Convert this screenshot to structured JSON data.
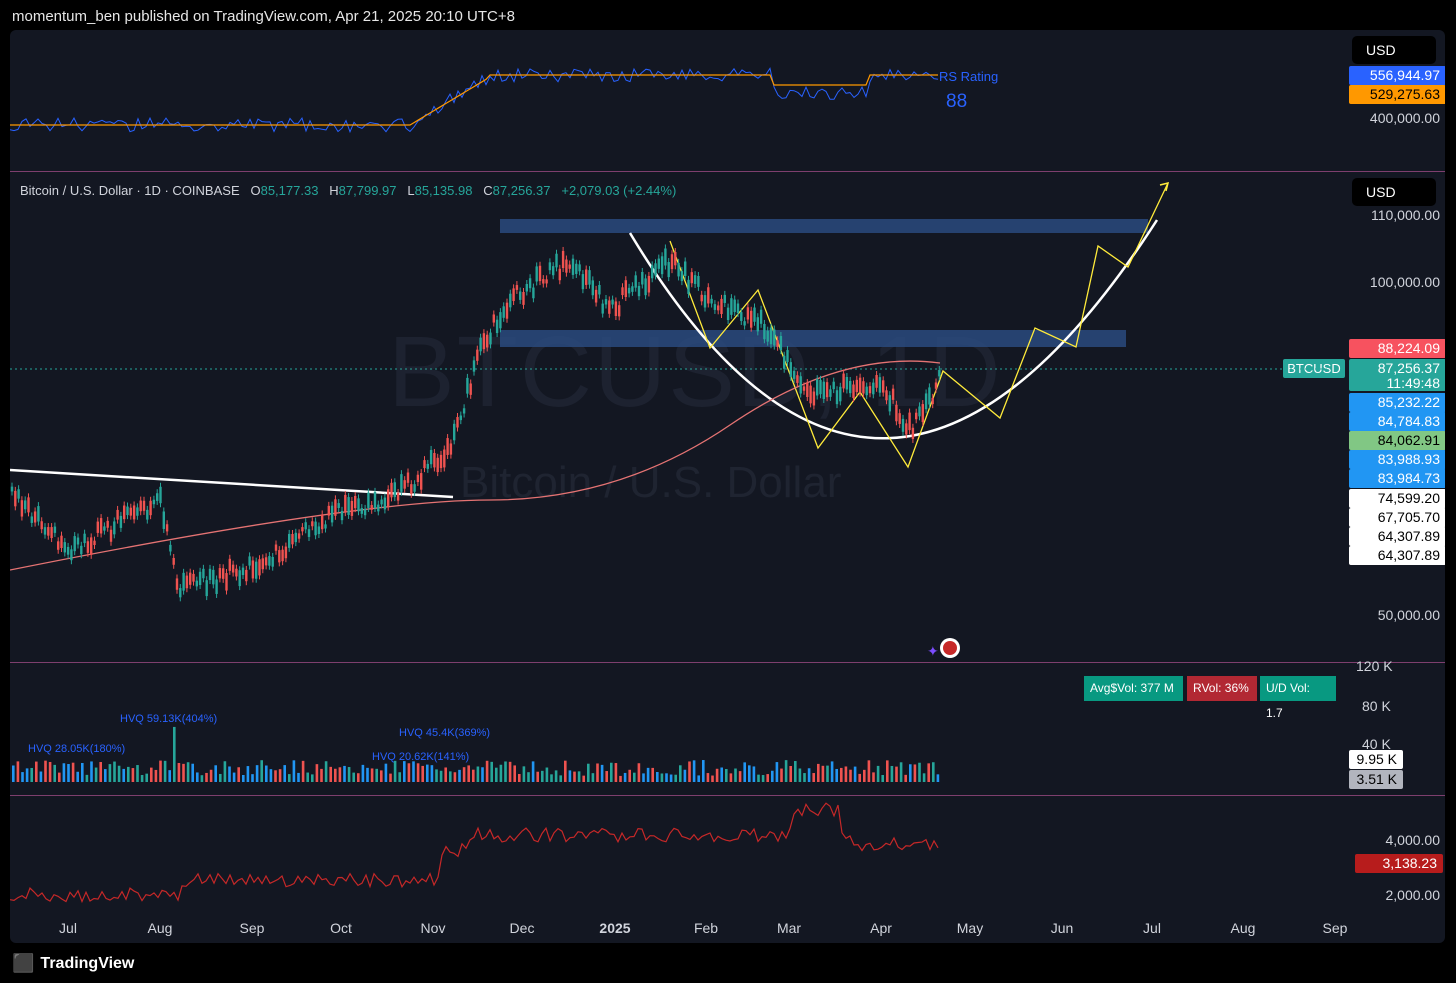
{
  "header": {
    "published_text": "momentum_ben published on TradingView.com, Apr 21, 2025 20:10 UTC+8"
  },
  "rs_pane": {
    "currency": "USD",
    "indicator_name": "RS Rating",
    "rating_value": "88",
    "tags": [
      {
        "text": "556,944.97",
        "bg": "#2962ff",
        "fg": "#ffffff"
      },
      {
        "text": "529,275.63",
        "bg": "#ff9800",
        "fg": "#000000"
      }
    ],
    "scale_label": "400,000.00"
  },
  "main_pane": {
    "currency": "USD",
    "legend": {
      "symbol": "Bitcoin / U.S. Dollar · 1D · COINBASE",
      "o_label": "O",
      "o_value": "85,177.33",
      "h_label": "H",
      "h_value": "87,799.97",
      "l_label": "L",
      "l_value": "85,135.98",
      "c_label": "C",
      "c_value": "87,256.37",
      "change": "+2,079.03 (+2.44%)"
    },
    "watermark_symbol": "BTCUSD, 1D",
    "watermark_name": "Bitcoin / U.S. Dollar",
    "scale_labels": [
      "110,000.00",
      "100,000.00",
      "50,000.00"
    ],
    "symbol_tag": "BTCUSD",
    "current_price": "87,256.37",
    "countdown": "11:49:48",
    "price_tags": [
      {
        "text": "88,224.09",
        "bg": "#f7525f",
        "fg": "#ffffff"
      },
      {
        "text": "85,232.22",
        "bg": "#2196f3",
        "fg": "#ffffff"
      },
      {
        "text": "84,784.83",
        "bg": "#2196f3",
        "fg": "#ffffff"
      },
      {
        "text": "84,062.91",
        "bg": "#81c784",
        "fg": "#000000"
      },
      {
        "text": "83,988.93",
        "bg": "#2196f3",
        "fg": "#ffffff"
      },
      {
        "text": "83,984.73",
        "bg": "#2196f3",
        "fg": "#ffffff"
      },
      {
        "text": "74,599.20",
        "bg": "#ffffff",
        "fg": "#000000"
      },
      {
        "text": "67,705.70",
        "bg": "#ffffff",
        "fg": "#000000"
      },
      {
        "text": "64,307.89",
        "bg": "#ffffff",
        "fg": "#000000"
      },
      {
        "text": "64,307.89",
        "bg": "#ffffff",
        "fg": "#000000"
      }
    ]
  },
  "volume_pane": {
    "stats": [
      {
        "text": "Avg$Vol: 377 M",
        "bg": "#089981"
      },
      {
        "text": "RVol: 36%",
        "bg": "#b22833"
      },
      {
        "text": "U/D Vol: 1.7",
        "bg": "#089981"
      }
    ],
    "scale_labels": [
      "120 K",
      "80 K",
      "40 K"
    ],
    "tags": [
      {
        "text": "9.95 K",
        "bg": "#ffffff",
        "fg": "#000000"
      },
      {
        "text": "3.51 K",
        "bg": "#b2b5be",
        "fg": "#000000"
      }
    ],
    "annotations": [
      "HVQ 28.05K(180%)",
      "HVQ 59.13K(404%)",
      "HVQ 45.4K(369%)",
      "HVQ 20.62K(141%)"
    ]
  },
  "lower_pane": {
    "scale_labels": [
      "4,000.00",
      "2,000.00"
    ],
    "tag": {
      "text": "3,138.23",
      "bg": "#b71c1c",
      "fg": "#ffffff"
    }
  },
  "time_axis": [
    "Jul",
    "Aug",
    "Sep",
    "Oct",
    "Nov",
    "Dec",
    "2025",
    "Feb",
    "Mar",
    "Apr",
    "May",
    "Jun",
    "Jul",
    "Aug",
    "Sep"
  ],
  "footer": {
    "brand": "TradingView"
  },
  "colors": {
    "background": "#131722",
    "up": "#26a69a",
    "down": "#ef5350",
    "projection": "#ffeb3b",
    "rs_line": "#2962ff",
    "rs_avg": "#ff9800"
  }
}
